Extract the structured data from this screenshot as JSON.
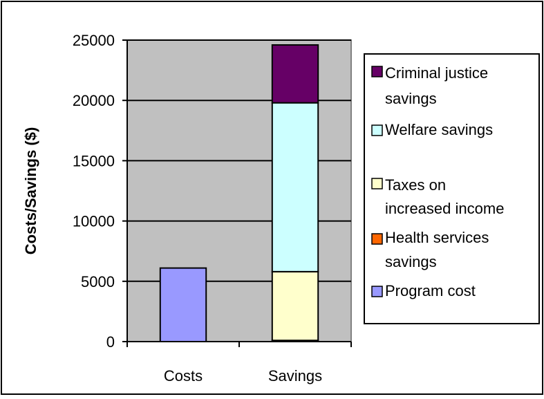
{
  "chart_data": {
    "type": "bar",
    "stacked": true,
    "categories": [
      "Costs",
      "Savings"
    ],
    "ylabel": "Costs/Savings ($)",
    "xlabel": "",
    "ylim": [
      0,
      25000
    ],
    "yticks": [
      0,
      5000,
      10000,
      15000,
      20000,
      25000
    ],
    "grid": true,
    "legend_position": "right",
    "series": [
      {
        "name": "Program cost",
        "color": "#9999ff",
        "values": [
          6100,
          0
        ]
      },
      {
        "name": "Health services savings",
        "color": "#ff6600",
        "values": [
          0,
          100
        ]
      },
      {
        "name": "Taxes on increased income",
        "color": "#ffffcc",
        "values": [
          0,
          5700
        ]
      },
      {
        "name": "Welfare savings",
        "color": "#ccffff",
        "values": [
          0,
          14000
        ]
      },
      {
        "name": "Criminal justice savings",
        "color": "#660066",
        "values": [
          0,
          4800
        ]
      }
    ]
  }
}
